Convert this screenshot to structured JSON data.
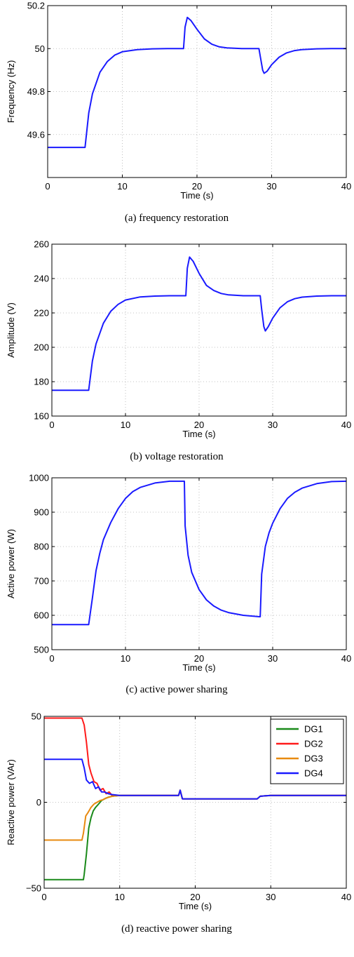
{
  "chart_data": [
    {
      "type": "line",
      "caption": "(a) frequency restoration",
      "xlabel": "Time (s)",
      "ylabel": "Frequency (Hz)",
      "xlim": [
        0,
        40
      ],
      "ylim": [
        49.4,
        50.2
      ],
      "xticks": [
        "0",
        "10",
        "20",
        "30",
        "40"
      ],
      "yticks": [
        "49.6",
        "49.8",
        "50",
        "50.2"
      ],
      "grid": true,
      "series": [
        {
          "color": "#1a1aff",
          "x": [
            0,
            4.9,
            5.0,
            5.5,
            6,
            7,
            8,
            9,
            10,
            12,
            14,
            16,
            18.2,
            18.4,
            18.7,
            19.2,
            20,
            21,
            22,
            23,
            24,
            26,
            28.3,
            28.5,
            28.8,
            29.0,
            29.4,
            30,
            31,
            32,
            33,
            34,
            36,
            38,
            40
          ],
          "y": [
            49.54,
            49.54,
            49.54,
            49.7,
            49.79,
            49.89,
            49.94,
            49.97,
            49.985,
            49.995,
            49.999,
            50.0,
            50.0,
            50.1,
            50.145,
            50.13,
            50.09,
            50.045,
            50.02,
            50.008,
            50.003,
            50.0,
            50.0,
            49.96,
            49.9,
            49.885,
            49.895,
            49.925,
            49.96,
            49.98,
            49.99,
            49.995,
            49.999,
            50.0,
            50.0
          ]
        }
      ]
    },
    {
      "type": "line",
      "caption": "(b) voltage restoration",
      "xlabel": "Time (s)",
      "ylabel": "Amplitude (V)",
      "xlim": [
        0,
        40
      ],
      "ylim": [
        160,
        260
      ],
      "xticks": [
        "0",
        "10",
        "20",
        "30",
        "40"
      ],
      "yticks": [
        "160",
        "180",
        "200",
        "220",
        "240",
        "260"
      ],
      "grid": true,
      "series": [
        {
          "color": "#1a1aff",
          "x": [
            0,
            4.9,
            5.0,
            5.5,
            6,
            7,
            8,
            9,
            10,
            12,
            14,
            16,
            18.2,
            18.4,
            18.7,
            19.2,
            20,
            21,
            22,
            23,
            24,
            26,
            28.3,
            28.5,
            28.8,
            29.0,
            29.4,
            30,
            31,
            32,
            33,
            34,
            36,
            38,
            40
          ],
          "y": [
            175,
            175,
            175,
            192,
            202,
            214,
            221,
            225,
            227.5,
            229.3,
            229.8,
            230,
            230,
            246,
            252.5,
            250,
            243,
            236,
            233,
            231.3,
            230.5,
            230,
            230,
            222,
            212,
            209.5,
            212,
            217,
            223,
            226.5,
            228.3,
            229.2,
            229.8,
            230,
            230
          ]
        }
      ]
    },
    {
      "type": "line",
      "caption": "(c) active power sharing",
      "xlabel": "Time (s)",
      "ylabel": "Active power (W)",
      "xlim": [
        0,
        40
      ],
      "ylim": [
        500,
        1000
      ],
      "xticks": [
        "0",
        "10",
        "20",
        "30",
        "40"
      ],
      "yticks": [
        "500",
        "600",
        "700",
        "800",
        "900",
        "1000"
      ],
      "grid": true,
      "series": [
        {
          "color": "#1a1aff",
          "x": [
            0,
            4.9,
            5.0,
            5.5,
            6,
            6.5,
            7,
            8,
            9,
            10,
            11,
            12,
            14,
            16,
            17.9,
            18.0,
            18.1,
            18.5,
            19,
            20,
            21,
            22,
            23,
            24,
            26,
            28.2,
            28.3,
            28.5,
            29,
            29.5,
            30,
            31,
            32,
            33,
            34,
            36,
            38,
            40
          ],
          "y": [
            573,
            573,
            573,
            650,
            730,
            780,
            820,
            870,
            910,
            940,
            960,
            972,
            985,
            990,
            990,
            990,
            860,
            775,
            725,
            675,
            645,
            627,
            615,
            608,
            600,
            596,
            596,
            720,
            800,
            840,
            868,
            910,
            940,
            958,
            970,
            983,
            989,
            990
          ]
        }
      ]
    },
    {
      "type": "line",
      "caption": "(d) reactive power sharing",
      "xlabel": "Time (s)",
      "ylabel": "Reactive power (VAr)",
      "xlim": [
        0,
        40
      ],
      "ylim": [
        -50,
        50
      ],
      "xticks": [
        "0",
        "10",
        "20",
        "30",
        "40"
      ],
      "yticks": [
        "−50",
        "0",
        "50"
      ],
      "ytick_values": [
        -50,
        0,
        50
      ],
      "grid": true,
      "legend": "top-right",
      "series": [
        {
          "name": "DG1",
          "color": "#1a8a1a",
          "x": [
            0,
            5.2,
            5.3,
            5.6,
            5.9,
            6.2,
            6.5,
            6.8,
            7.2,
            7.6,
            8.0,
            8.5,
            9,
            10,
            12,
            17.8,
            18.0,
            18.3,
            18.6,
            20,
            25,
            28.2,
            28.6,
            30,
            35,
            40
          ],
          "y": [
            -45,
            -45,
            -42,
            -30,
            -15,
            -9,
            -5,
            -3,
            -1,
            1,
            2,
            3,
            3.5,
            4,
            4,
            4,
            7,
            2,
            2,
            2,
            2,
            2,
            3.5,
            4,
            4,
            4
          ]
        },
        {
          "name": "DG2",
          "color": "#ff1a1a",
          "x": [
            0,
            5.0,
            5.3,
            5.6,
            5.9,
            6.2,
            6.6,
            7.0,
            7.4,
            7.8,
            8.2,
            8.6,
            9,
            10,
            12,
            17.8,
            18.0,
            18.3,
            18.6,
            20,
            25,
            28.2,
            28.6,
            30,
            35,
            40
          ],
          "y": [
            49,
            49,
            45,
            35,
            22,
            17,
            12,
            11,
            7,
            8,
            5,
            6,
            4,
            4,
            4,
            4,
            7,
            2,
            2,
            2,
            2,
            2,
            3.5,
            4,
            4,
            4
          ]
        },
        {
          "name": "DG3",
          "color": "#e88a10",
          "x": [
            0,
            5.0,
            5.2,
            5.5,
            5.8,
            6.2,
            6.6,
            7.0,
            7.4,
            7.8,
            8.2,
            8.6,
            9,
            10,
            12,
            17.8,
            18.0,
            18.3,
            18.6,
            20,
            25,
            28.2,
            28.6,
            30,
            35,
            40
          ],
          "y": [
            -22,
            -22,
            -18,
            -8,
            -6,
            -3,
            -1,
            0,
            1,
            1.5,
            2.5,
            3,
            3.5,
            4,
            4,
            4,
            7,
            2,
            2,
            2,
            2,
            2,
            3.5,
            4,
            4,
            4
          ]
        },
        {
          "name": "DG4",
          "color": "#1a1aff",
          "x": [
            0,
            5.0,
            5.3,
            5.6,
            6.0,
            6.4,
            6.8,
            7.2,
            7.6,
            8.0,
            8.5,
            9,
            10,
            12,
            17.8,
            18.0,
            18.3,
            18.6,
            20,
            25,
            28.2,
            28.6,
            30,
            35,
            40
          ],
          "y": [
            25,
            25,
            20,
            13,
            11,
            12,
            8,
            9,
            6,
            6,
            5,
            4.5,
            4,
            4,
            4,
            7,
            2,
            2,
            2,
            2,
            2,
            3.5,
            4,
            4,
            4
          ]
        }
      ]
    }
  ]
}
